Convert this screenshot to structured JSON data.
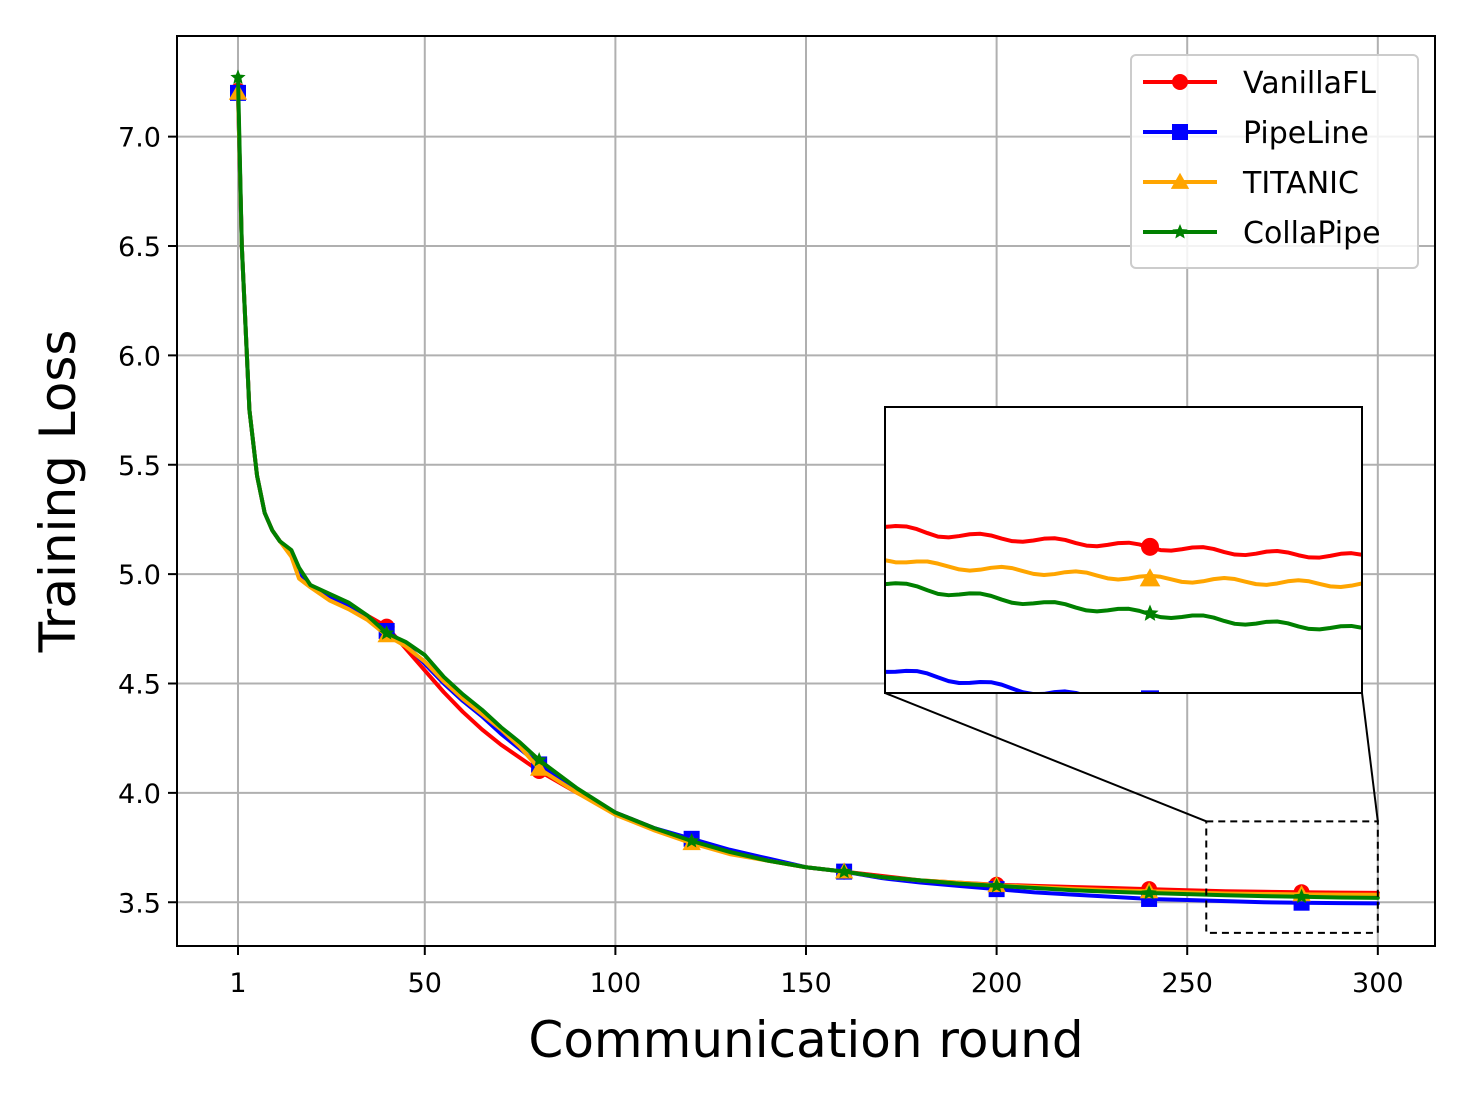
{
  "chart_data": {
    "type": "line",
    "title": "",
    "xlabel": "Communication round",
    "ylabel": "Training Loss",
    "xlim": [
      -15,
      315
    ],
    "ylim": [
      3.3,
      7.46
    ],
    "xticks": [
      1,
      50,
      100,
      150,
      200,
      250,
      300
    ],
    "yticks": [
      3.5,
      4.0,
      4.5,
      5.0,
      5.5,
      6.0,
      6.5,
      7.0
    ],
    "grid": true,
    "legend_position": "top-right",
    "marker_x": [
      1,
      40,
      80,
      120,
      160,
      200,
      240,
      280
    ],
    "x": [
      1,
      2,
      4,
      6,
      8,
      10,
      12,
      15,
      17,
      20,
      25,
      30,
      35,
      40,
      45,
      50,
      55,
      60,
      65,
      70,
      75,
      80,
      90,
      100,
      110,
      120,
      130,
      140,
      150,
      160,
      170,
      180,
      190,
      200,
      210,
      220,
      230,
      240,
      250,
      260,
      270,
      280,
      290,
      300
    ],
    "series": [
      {
        "name": "VanillaFL",
        "color": "#ff0000",
        "marker": "circle",
        "values": [
          7.21,
          6.5,
          5.75,
          5.45,
          5.28,
          5.2,
          5.15,
          5.1,
          5.01,
          4.95,
          4.9,
          4.86,
          4.81,
          4.76,
          4.66,
          4.56,
          4.46,
          4.37,
          4.29,
          4.22,
          4.16,
          4.1,
          4.0,
          3.91,
          3.84,
          3.78,
          3.73,
          3.69,
          3.66,
          3.64,
          3.62,
          3.6,
          3.59,
          3.58,
          3.575,
          3.57,
          3.565,
          3.56,
          3.555,
          3.55,
          3.548,
          3.546,
          3.544,
          3.543
        ]
      },
      {
        "name": "PipeLine",
        "color": "#0000ff",
        "marker": "square",
        "values": [
          7.2,
          6.5,
          5.75,
          5.45,
          5.28,
          5.2,
          5.15,
          5.1,
          5.01,
          4.95,
          4.9,
          4.86,
          4.8,
          4.74,
          4.68,
          4.59,
          4.5,
          4.42,
          4.35,
          4.27,
          4.2,
          4.13,
          4.01,
          3.91,
          3.84,
          3.79,
          3.74,
          3.7,
          3.66,
          3.64,
          3.61,
          3.59,
          3.575,
          3.56,
          3.545,
          3.535,
          3.525,
          3.515,
          3.51,
          3.505,
          3.5,
          3.498,
          3.496,
          3.495
        ]
      },
      {
        "name": "TITANIC",
        "color": "#ffa500",
        "marker": "triangle",
        "values": [
          7.2,
          6.5,
          5.75,
          5.45,
          5.28,
          5.2,
          5.15,
          5.08,
          4.98,
          4.94,
          4.88,
          4.84,
          4.79,
          4.72,
          4.67,
          4.6,
          4.51,
          4.43,
          4.36,
          4.29,
          4.21,
          4.11,
          4.0,
          3.9,
          3.83,
          3.77,
          3.72,
          3.69,
          3.66,
          3.64,
          3.615,
          3.6,
          3.59,
          3.578,
          3.57,
          3.562,
          3.555,
          3.55,
          3.545,
          3.54,
          3.538,
          3.536,
          3.535,
          3.534
        ]
      },
      {
        "name": "CollaPipe",
        "color": "#008000",
        "marker": "star",
        "values": [
          7.27,
          6.5,
          5.75,
          5.45,
          5.28,
          5.2,
          5.15,
          5.11,
          5.03,
          4.95,
          4.91,
          4.87,
          4.81,
          4.73,
          4.69,
          4.63,
          4.53,
          4.45,
          4.38,
          4.3,
          4.23,
          4.15,
          4.02,
          3.91,
          3.84,
          3.78,
          3.73,
          3.69,
          3.66,
          3.64,
          3.615,
          3.6,
          3.585,
          3.575,
          3.565,
          3.555,
          3.548,
          3.542,
          3.537,
          3.532,
          3.528,
          3.525,
          3.522,
          3.52
        ]
      }
    ],
    "inset": {
      "xlim": [
        255,
        300
      ],
      "ylim": [
        3.36,
        3.87
      ],
      "zoom_ylim": [
        3.5,
        3.59
      ]
    }
  }
}
